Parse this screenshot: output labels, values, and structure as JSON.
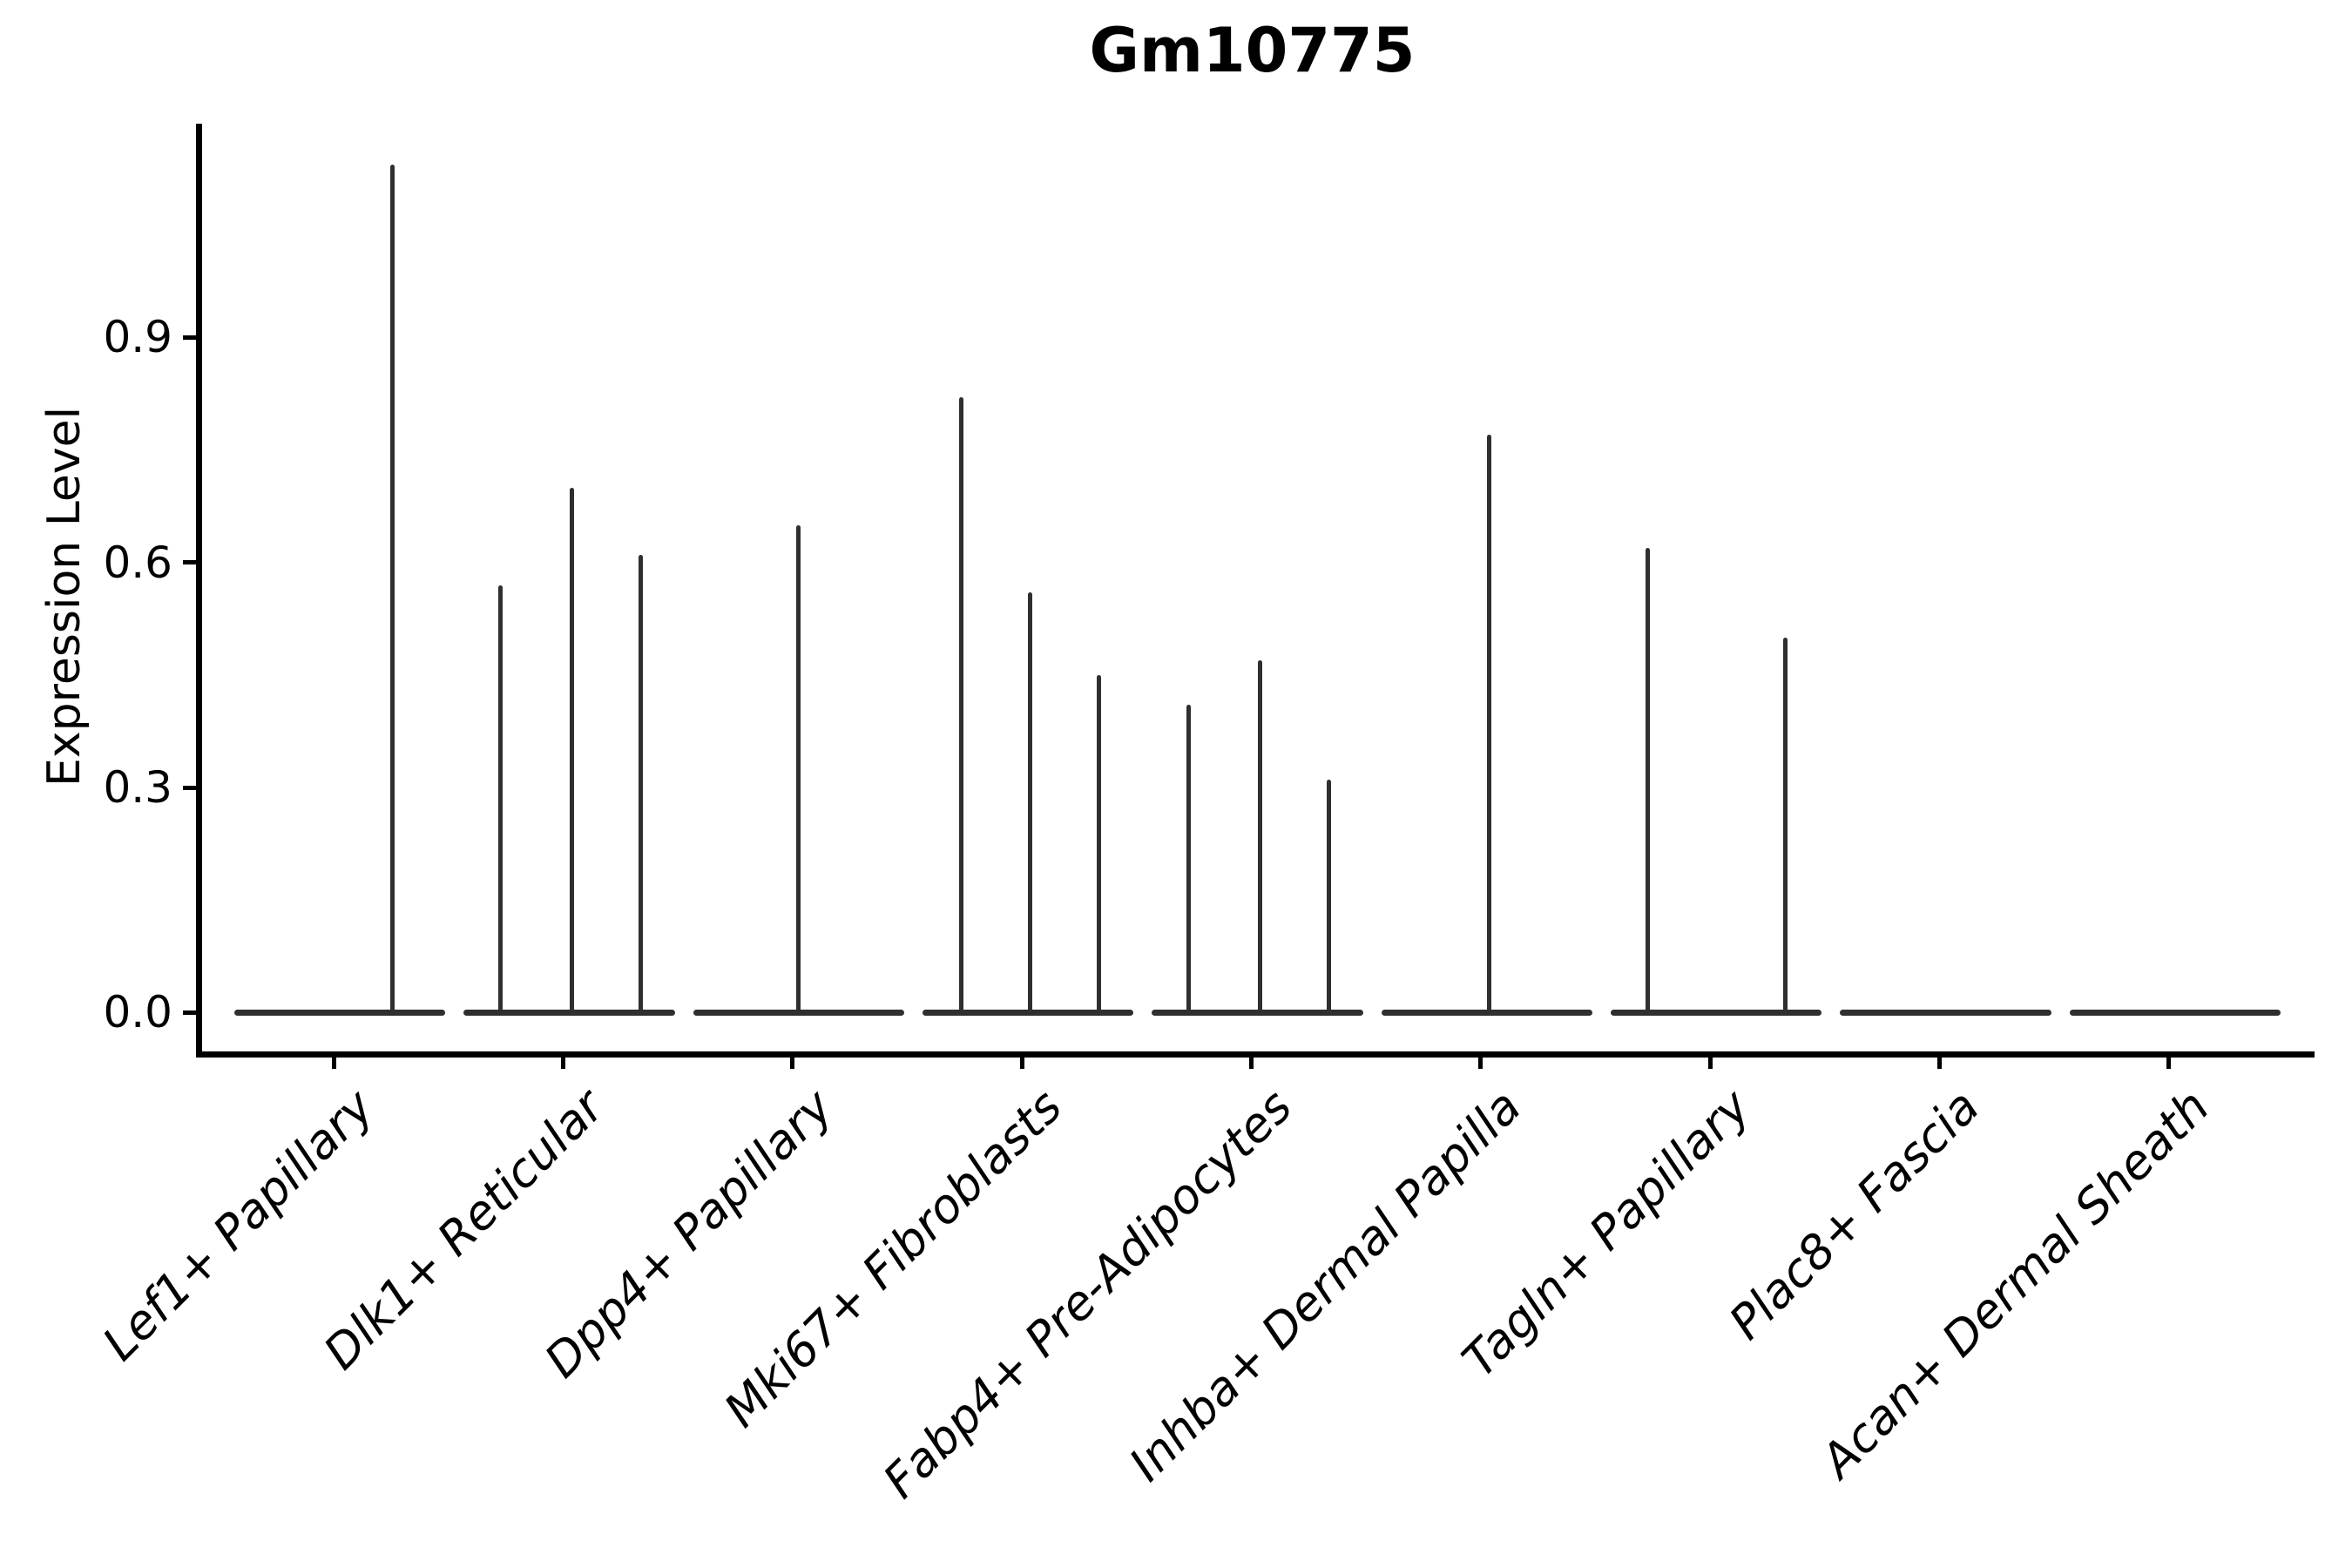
{
  "figure": {
    "title": "Gm10775"
  },
  "chart_data": {
    "type": "violin",
    "title": "Gm10775",
    "xlabel": "",
    "ylabel": "Expression Level",
    "categories": [
      "Lef1+ Papillary",
      "Dlk1+ Reticular",
      "Dpp4+ Papillary",
      "Mki67+ Fibroblasts",
      "Fabp4+ Pre-Adipocytes",
      "Inhba+ Dermal Papilla",
      "Tagln+ Papillary",
      "Plac8+ Fascia",
      "Acan+ Dermal Sheath"
    ],
    "yticks": [
      0.0,
      0.3,
      0.6,
      0.9
    ],
    "ytick_labels": [
      "0.0",
      "0.3",
      "0.6",
      "0.9"
    ],
    "ylim": [
      -0.1,
      1.19
    ],
    "grid": false,
    "legend": "none",
    "violin_rel_width": 0.92,
    "violins": [
      {
        "category": "Lef1+ Papillary",
        "base_value": 0.0,
        "spikes": [
          {
            "rel_x": 0.23,
            "value": 1.13
          }
        ]
      },
      {
        "category": "Dlk1+ Reticular",
        "base_value": 0.0,
        "spikes": [
          {
            "rel_x": -0.3,
            "value": 0.57
          },
          {
            "rel_x": 0.01,
            "value": 0.7
          },
          {
            "rel_x": 0.31,
            "value": 0.61
          }
        ]
      },
      {
        "category": "Dpp4+ Papillary",
        "base_value": 0.0,
        "spikes": [
          {
            "rel_x": 0.0,
            "value": 0.65
          }
        ]
      },
      {
        "category": "Mki67+ Fibroblasts",
        "base_value": 0.0,
        "spikes": [
          {
            "rel_x": -0.29,
            "value": 0.82
          },
          {
            "rel_x": 0.01,
            "value": 0.56
          },
          {
            "rel_x": 0.31,
            "value": 0.45
          }
        ]
      },
      {
        "category": "Fabp4+ Pre-Adipocytes",
        "base_value": 0.0,
        "spikes": [
          {
            "rel_x": -0.3,
            "value": 0.41
          },
          {
            "rel_x": 0.01,
            "value": 0.47
          },
          {
            "rel_x": 0.31,
            "value": 0.31
          }
        ]
      },
      {
        "category": "Inhba+ Dermal Papilla",
        "base_value": 0.0,
        "spikes": [
          {
            "rel_x": 0.01,
            "value": 0.77
          }
        ]
      },
      {
        "category": "Tagln+ Papillary",
        "base_value": 0.0,
        "spikes": [
          {
            "rel_x": -0.3,
            "value": 0.62
          },
          {
            "rel_x": 0.3,
            "value": 0.5
          }
        ]
      },
      {
        "category": "Plac8+ Fascia",
        "base_value": 0.0,
        "spikes": []
      },
      {
        "category": "Acan+ Dermal Sheath",
        "base_value": 0.0,
        "spikes": []
      }
    ],
    "colors": {
      "violin": "#2f2f2f",
      "axis": "#000000",
      "text": "#000000",
      "background": "#ffffff"
    }
  }
}
